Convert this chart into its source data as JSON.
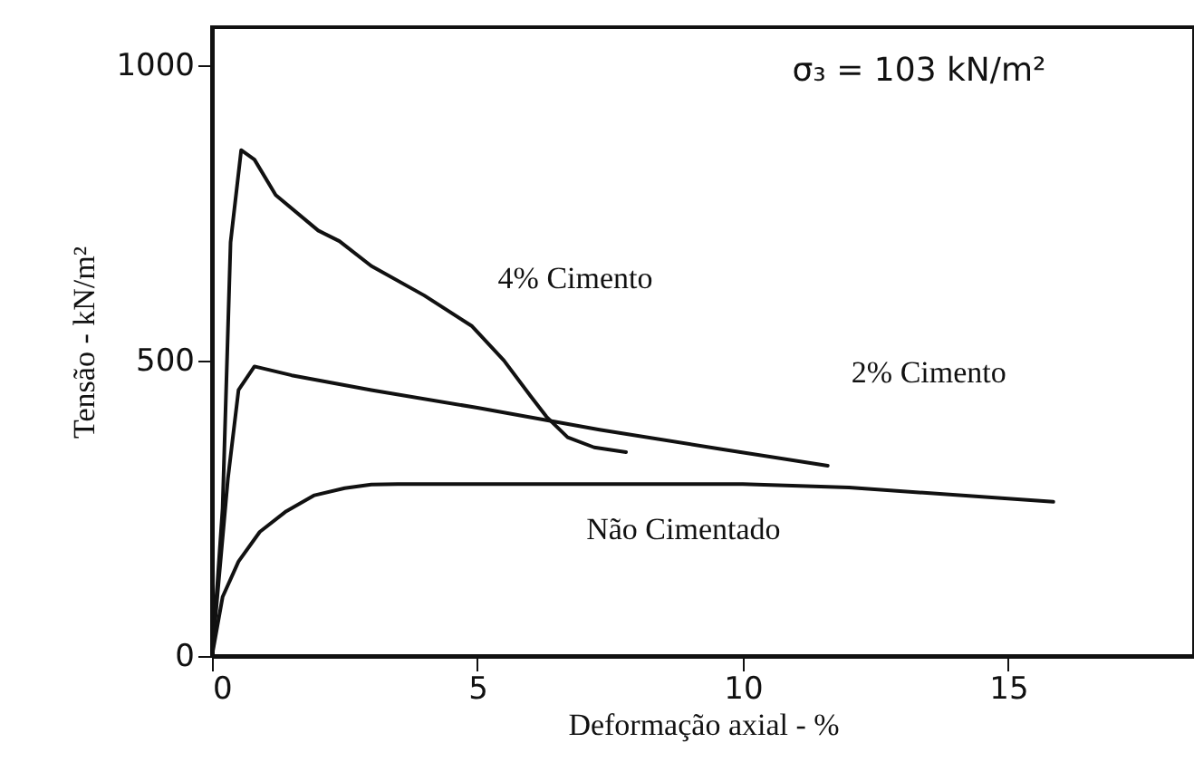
{
  "chart_data": {
    "type": "line",
    "xlabel": "Deformação axial - %",
    "ylabel": "Tensão - kN/m²",
    "annotations": [
      "σ₃ = 103 kN/m²"
    ],
    "xlim": [
      0,
      18.5
    ],
    "ylim": [
      0,
      1064
    ],
    "xticks": [
      0,
      5,
      10,
      15
    ],
    "yticks": [
      0,
      500,
      1000
    ],
    "marker": "none",
    "line_style": "solid",
    "series": [
      {
        "name": "4% Cimento",
        "color": "#111111",
        "x": [
          0,
          0.1,
          0.2,
          0.35,
          0.55,
          0.8,
          1.2,
          2,
          2.4,
          3,
          4,
          4.9,
          5.5,
          6,
          6.3,
          6.7,
          7.2,
          7.8
        ],
        "values": [
          0,
          120,
          250,
          700,
          856,
          840,
          780,
          720,
          702,
          660,
          610,
          558,
          500,
          440,
          405,
          370,
          353,
          345
        ]
      },
      {
        "name": "2% Cimento",
        "color": "#111111",
        "x": [
          0,
          0.2,
          0.3,
          0.5,
          0.8,
          1.5,
          3,
          5,
          7.3,
          9.6,
          11.6
        ],
        "values": [
          0,
          200,
          300,
          450,
          490,
          475,
          450,
          420,
          383,
          350,
          322
        ]
      },
      {
        "name": "Não Cimentado",
        "color": "#111111",
        "x": [
          0,
          0.2,
          0.5,
          0.9,
          1.4,
          1.93,
          2.5,
          3,
          3.5,
          6,
          10,
          12,
          15.85
        ],
        "values": [
          0,
          100,
          160,
          210,
          245,
          272,
          284,
          290,
          291,
          291,
          291,
          285,
          261
        ]
      }
    ]
  }
}
